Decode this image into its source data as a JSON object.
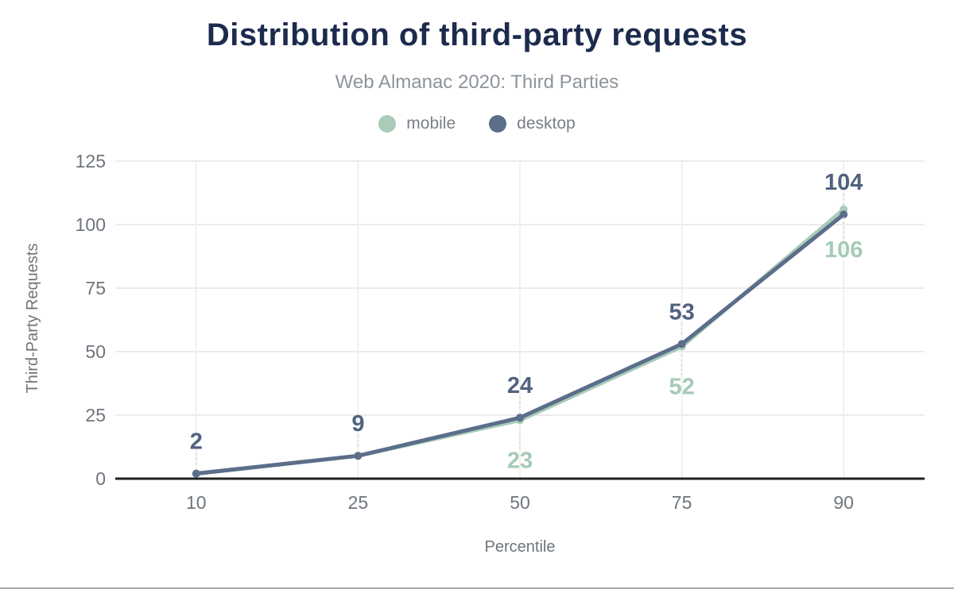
{
  "header": {
    "title": "Distribution of third-party requests",
    "subtitle": "Web Almanac 2020: Third Parties"
  },
  "legend": [
    {
      "label": "mobile",
      "color": "#a9ccb9"
    },
    {
      "label": "desktop",
      "color": "#5b6e8a"
    }
  ],
  "chart_data": {
    "type": "line",
    "title": "Distribution of third-party requests",
    "subtitle": "Web Almanac 2020: Third Parties",
    "categories": [
      "10",
      "25",
      "50",
      "75",
      "90"
    ],
    "series": [
      {
        "name": "mobile",
        "color": "#a9ccb9",
        "label_color": "#a5cab6",
        "values": [
          2,
          9,
          23,
          52,
          106
        ],
        "labels": [
          "",
          "",
          "23",
          "52",
          "106"
        ],
        "label_side": "below"
      },
      {
        "name": "desktop",
        "color": "#5b6e8a",
        "label_color": "#50627f",
        "values": [
          2,
          9,
          24,
          53,
          104
        ],
        "labels": [
          "2",
          "9",
          "24",
          "53",
          "104"
        ],
        "label_side": "above"
      }
    ],
    "xlabel": "Percentile",
    "ylabel": "Third-Party Requests",
    "ylim": [
      0,
      125
    ],
    "yticks": [
      0,
      25,
      50,
      75,
      100,
      125
    ],
    "grid": true,
    "legend_position": "top",
    "colors": {
      "tick_text": "#6e757d",
      "gridline": "#ececec",
      "vertical_gridline": "#f0f0f0",
      "zero_axis": "#202020",
      "leader_line": "#d8d8d8"
    }
  }
}
